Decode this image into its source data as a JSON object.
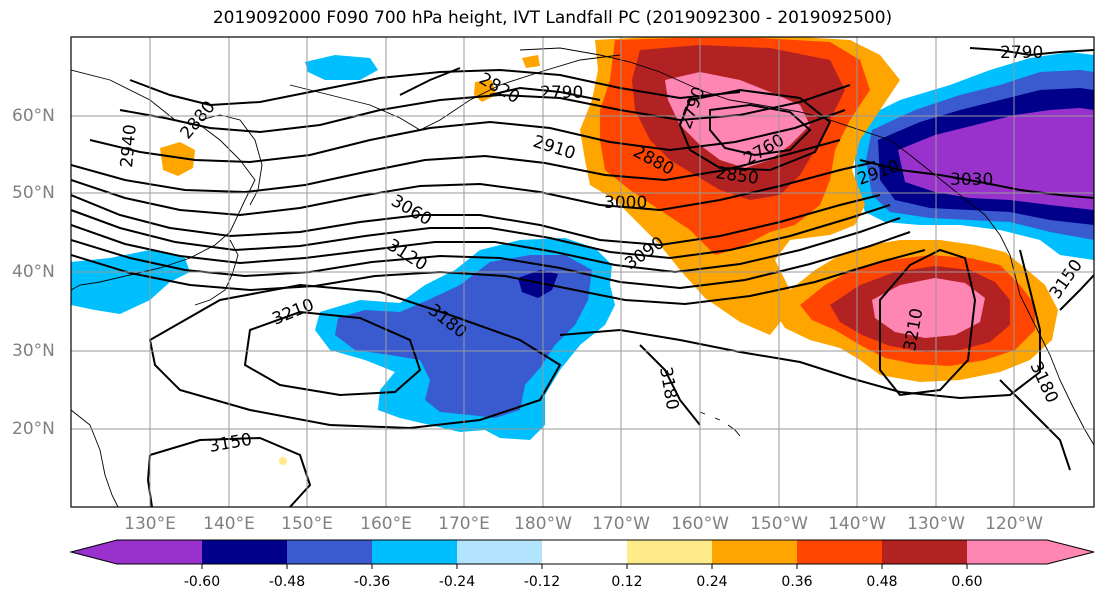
{
  "title": "2019092000 F090 700 hPa height, IVT Landfall PC (2019092300 - 2019092500)",
  "lon_labels": [
    "130°E",
    "140°E",
    "150°E",
    "160°E",
    "170°E",
    "180°W",
    "170°W",
    "160°W",
    "150°W",
    "140°W",
    "130°W",
    "120°W"
  ],
  "lat_labels": [
    "60°N",
    "50°N",
    "40°N",
    "30°N",
    "20°N"
  ],
  "contour_labels": [
    "2790",
    "2820",
    "2880",
    "2940",
    "2910",
    "2880",
    "2850",
    "2790",
    "2760",
    "3000",
    "3060",
    "3090",
    "3120",
    "3180",
    "3210",
    "3150",
    "3180",
    "3210",
    "3150",
    "3180",
    "2790",
    "2910",
    "3030"
  ],
  "colorbar": {
    "ticks": [
      "-0.60",
      "-0.48",
      "-0.36",
      "-0.24",
      "-0.12",
      "0.12",
      "0.24",
      "0.36",
      "0.48",
      "0.60"
    ],
    "colors": [
      "#9932cc",
      "#00008b",
      "#3a5bd0",
      "#00bfff",
      "#b3e4ff",
      "#ffffff",
      "#ffeb8a",
      "#ffa500",
      "#ff4500",
      "#b22222",
      "#ff85b3"
    ]
  },
  "colors": {
    "blue_light": "#00bfff",
    "blue_mid": "#3a5bd0",
    "blue_dark": "#00008b",
    "purple": "#9932cc",
    "yellow": "#ffeb8a",
    "orange": "#ffa500",
    "red_orange": "#ff4500",
    "dark_red": "#b22222",
    "pink": "#ff85b3"
  }
}
